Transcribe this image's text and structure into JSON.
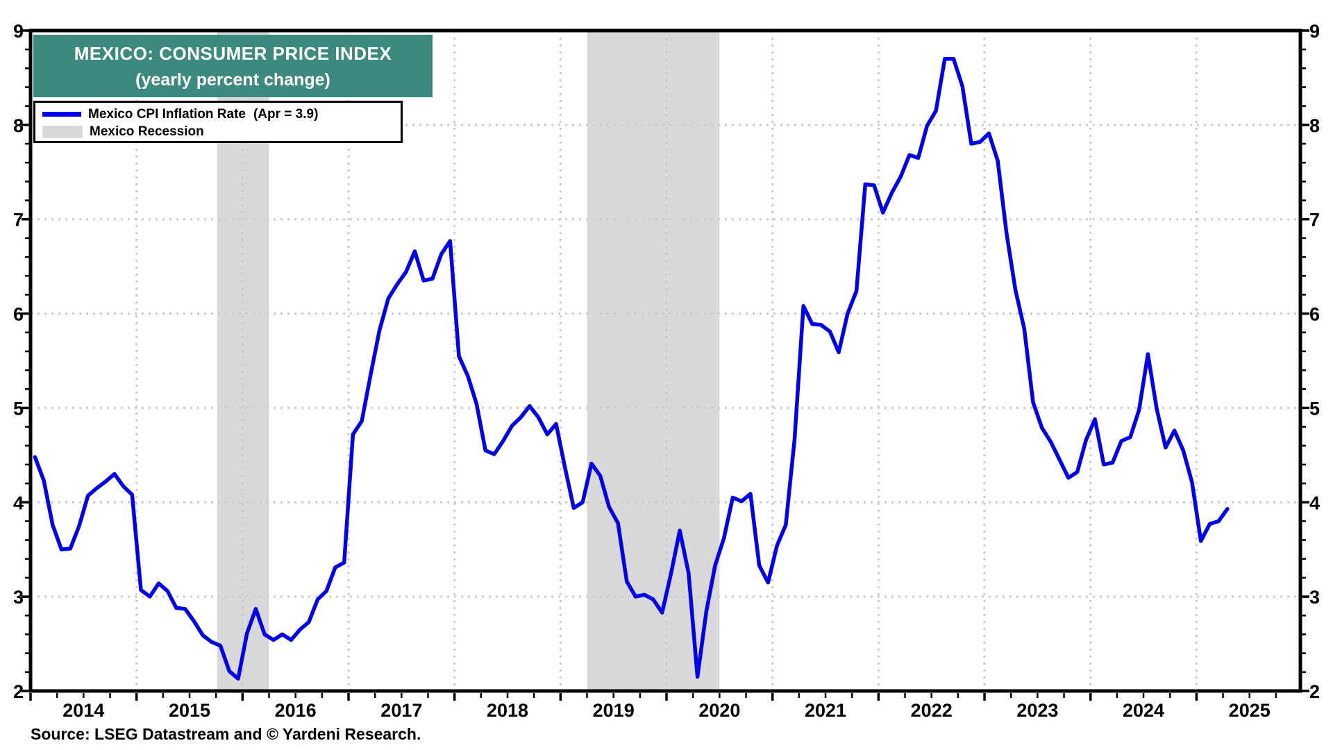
{
  "title": {
    "line1": "MEXICO: CONSUMER PRICE INDEX",
    "line2": "(yearly percent change)"
  },
  "legend": {
    "series_label": "Mexico CPI Inflation Rate",
    "series_note": "(Apr = 3.9)",
    "recession_label": "Mexico Recession"
  },
  "source": "Source: LSEG Datastream and © Yardeni Research.",
  "colors": {
    "line": "#0000EE",
    "recession_band": "#D9D9D9",
    "title_bg": "#3C8A7D",
    "title_text": "#FFFFFF",
    "grid": "#CBCBCB",
    "axis": "#000000",
    "background": "#FFFFFF"
  },
  "chart_data": {
    "type": "line",
    "title": "MEXICO: CONSUMER PRICE INDEX",
    "subtitle": "(yearly percent change)",
    "xlabel": "",
    "ylabel": "",
    "grid": "dotted",
    "legend_position": "top-left",
    "y_axis": {
      "min": 2,
      "max": 9,
      "major_tick_step": 1,
      "minor_tick_step": 0.2,
      "tick_labels": [
        "2",
        "3",
        "4",
        "5",
        "6",
        "7",
        "8",
        "9"
      ],
      "labels_on_both_sides": true
    },
    "x_axis": {
      "min": 2014.0,
      "max": 2025.98,
      "minor_tick_step_years": 0.25,
      "year_labels": [
        "2014",
        "2015",
        "2016",
        "2017",
        "2018",
        "2019",
        "2020",
        "2021",
        "2022",
        "2023",
        "2024",
        "2025"
      ],
      "gridline_at_january_of": [
        2015,
        2016,
        2017,
        2018,
        2019,
        2020,
        2021,
        2022,
        2023,
        2024,
        2025
      ]
    },
    "series": [
      {
        "name": "Mexico CPI Inflation Rate",
        "latest_point_label": "Apr = 3.9",
        "frequency": "monthly",
        "first_month": "2014-01",
        "last_month": "2025-04",
        "values": [
          4.48,
          4.23,
          3.76,
          3.5,
          3.51,
          3.75,
          4.07,
          4.15,
          4.22,
          4.3,
          4.17,
          4.08,
          3.07,
          3.0,
          3.14,
          3.06,
          2.88,
          2.87,
          2.74,
          2.59,
          2.52,
          2.48,
          2.21,
          2.13,
          2.61,
          2.87,
          2.6,
          2.54,
          2.6,
          2.54,
          2.65,
          2.73,
          2.97,
          3.06,
          3.31,
          3.36,
          4.72,
          4.86,
          5.35,
          5.82,
          6.16,
          6.31,
          6.44,
          6.66,
          6.35,
          6.37,
          6.63,
          6.77,
          5.55,
          5.34,
          5.04,
          4.55,
          4.51,
          4.65,
          4.81,
          4.9,
          5.02,
          4.9,
          4.72,
          4.83,
          4.37,
          3.94,
          4.0,
          4.41,
          4.28,
          3.95,
          3.78,
          3.16,
          3.0,
          3.02,
          2.97,
          2.83,
          3.24,
          3.7,
          3.25,
          2.15,
          2.84,
          3.33,
          3.62,
          4.05,
          4.01,
          4.09,
          3.33,
          3.15,
          3.54,
          3.76,
          4.67,
          6.08,
          5.89,
          5.88,
          5.81,
          5.59,
          6.0,
          6.24,
          7.37,
          7.36,
          7.07,
          7.28,
          7.45,
          7.68,
          7.65,
          7.99,
          8.15,
          8.7,
          8.7,
          8.41,
          7.8,
          7.82,
          7.91,
          7.62,
          6.85,
          6.25,
          5.84,
          5.06,
          4.79,
          4.64,
          4.45,
          4.26,
          4.32,
          4.66,
          4.88,
          4.4,
          4.42,
          4.65,
          4.69,
          4.98,
          5.57,
          4.99,
          4.58,
          4.76,
          4.55,
          4.21,
          3.59,
          3.77,
          3.8,
          3.93
        ]
      }
    ],
    "recession_bands": [
      {
        "from": 2015.76,
        "to": 2016.25
      },
      {
        "from": 2019.25,
        "to": 2020.5
      }
    ]
  }
}
